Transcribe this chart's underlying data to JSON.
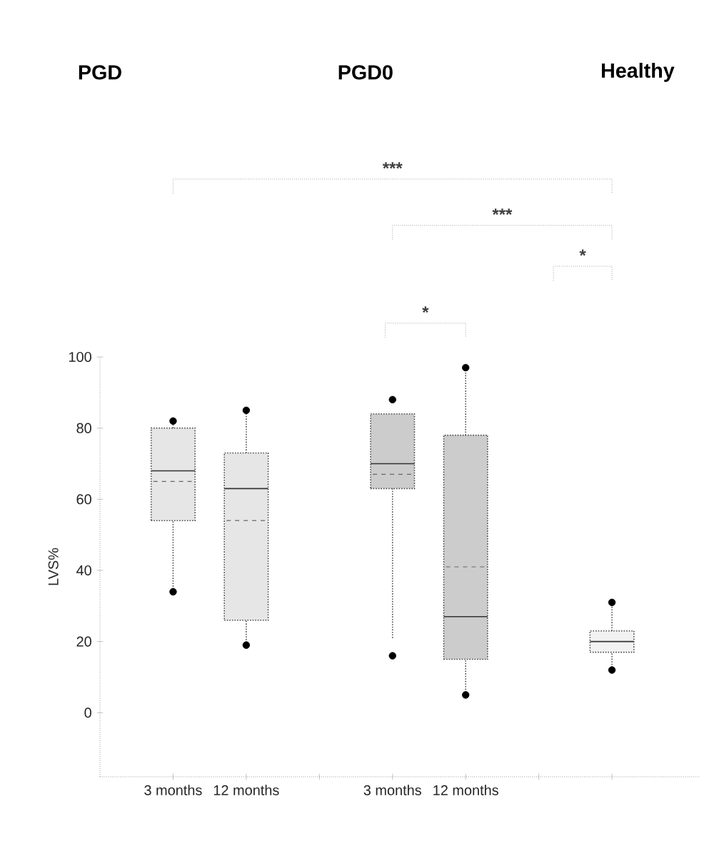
{
  "chart_data": {
    "type": "box",
    "ylabel": "LVS%",
    "categories": [
      "3 months",
      "12 months",
      null,
      "3 months",
      "12 months",
      null,
      null
    ],
    "boxes": [
      {
        "low": 34,
        "q1": 54,
        "median": 68,
        "q3": 80,
        "high": 82,
        "mean": 65,
        "outliers": [
          34,
          82
        ]
      },
      {
        "low": 19,
        "q1": 26,
        "median": 63,
        "q3": 73,
        "high": 85,
        "mean": 54,
        "outliers": [
          19,
          85
        ]
      },
      null,
      {
        "low": 21,
        "q1": 63,
        "median": 70,
        "q3": 84,
        "high": 84,
        "mean": 67,
        "outliers": [
          16,
          88
        ]
      },
      {
        "low": 5,
        "q1": 15,
        "median": 27,
        "q3": 78,
        "high": 97,
        "mean": 41,
        "outliers": [
          5,
          97
        ]
      },
      null,
      {
        "low": 12,
        "q1": 17,
        "median": 20,
        "q3": 23,
        "high": 31,
        "outliers": [
          12,
          31
        ]
      }
    ],
    "colors": [
      "#e6e6e6",
      "#e6e6e6",
      null,
      "#cccccc",
      "#cccccc",
      null,
      "#f2f2f2"
    ],
    "ylim": [
      -18,
      100
    ],
    "yticks": [
      0,
      20,
      40,
      60,
      80,
      100
    ],
    "annotations": [
      "PGD",
      "PGD0",
      "Healthy",
      "***",
      "***",
      "*",
      "*"
    ]
  }
}
